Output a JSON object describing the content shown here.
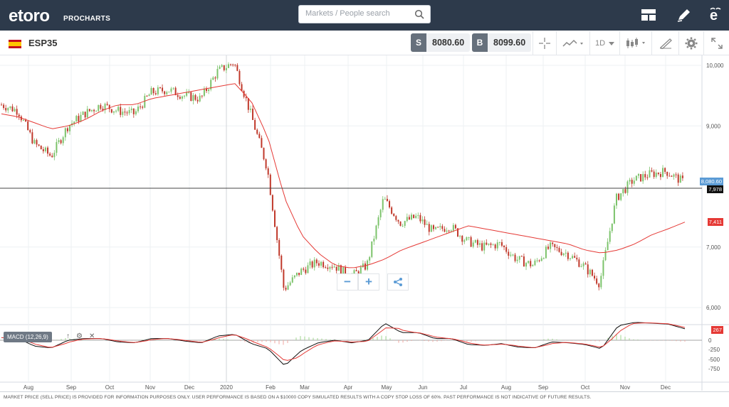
{
  "header": {
    "logo_text": "etoro",
    "logo_sub": "PROCHARTS",
    "search_placeholder": "Markets / People search"
  },
  "instrument": {
    "symbol": "ESP35",
    "sell_tag": "S",
    "sell_price": "8080.60",
    "buy_tag": "B",
    "buy_price": "8099.60",
    "timeframe": "1D"
  },
  "chart_data": {
    "type": "line",
    "price_axis": {
      "ticks": [
        "10,000",
        "9,000",
        "7,000",
        "6,000"
      ]
    },
    "macd_axis": {
      "ticks": [
        "0",
        "-250",
        "-500",
        "-750"
      ]
    },
    "x_ticks": [
      "Aug",
      "Sep",
      "Oct",
      "Nov",
      "Dec",
      "2020",
      "Feb",
      "Mar",
      "Apr",
      "May",
      "Jun",
      "Jul",
      "Aug",
      "Sep",
      "Oct",
      "Nov",
      "Dec"
    ],
    "price_tags": {
      "current": "8,080.60",
      "crosshair": "7,978",
      "ma": "7,411",
      "macd": "267"
    },
    "indicator_label": "MACD (12,26,9)",
    "colors": {
      "up": "#7cc36b",
      "down": "#c0392b",
      "ma": "#e53935",
      "macd_line": "#111111",
      "signal_line": "#e53935",
      "current_tag": "#5b9bd5",
      "ma_tag": "#e53935",
      "crosshair_tag": "#111111"
    },
    "close_series_approx": [
      9350,
      9250,
      8700,
      8500,
      9000,
      9200,
      9350,
      9250,
      9200,
      9550,
      9600,
      9500,
      9450,
      9900,
      10050,
      9200,
      8300,
      6300,
      6600,
      6750,
      6700,
      6500,
      6700,
      7800,
      7400,
      7500,
      7250,
      7350,
      7100,
      7000,
      7050,
      6800,
      6700,
      7000,
      6900,
      6700,
      6400,
      7800,
      8100,
      8200,
      8250,
      8080
    ],
    "ma_series_approx": [
      9200,
      9150,
      9050,
      8950,
      9000,
      9100,
      9250,
      9350,
      9350,
      9450,
      9500,
      9550,
      9600,
      9650,
      9700,
      9400,
      8800,
      7800,
      7200,
      6900,
      6700,
      6650,
      6700,
      6800,
      6950,
      7050,
      7150,
      7250,
      7350,
      7300,
      7250,
      7200,
      7150,
      7100,
      7050,
      6950,
      6900,
      6950,
      7050,
      7200,
      7300,
      7411
    ]
  },
  "footer": {
    "disclaimer": "MARKET PRICE (SELL PRICE) IS PROVIDED FOR INFORMATION PURPOSES ONLY. USER PERFORMANCE IS BASED ON A $10000 COPY SIMULATED RESULTS WITH A COPY STOP LOSS OF 60%. PAST PERFORMANCE IS NOT INDICATIVE OF FUTURE RESULTS."
  }
}
